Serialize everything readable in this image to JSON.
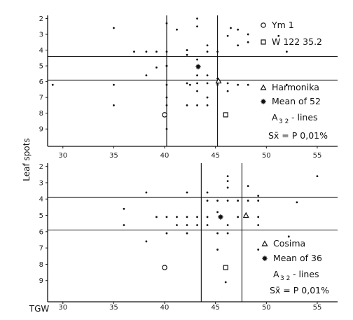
{
  "chart_data": [
    {
      "type": "scatter",
      "xlabel": "",
      "ylabel": "Leaf spots",
      "x_ticks": [
        "30",
        "35",
        "40",
        "45",
        "50",
        "55"
      ],
      "y_ticks": [
        "2",
        "3",
        "4",
        "5",
        "6",
        "7",
        "8",
        "9"
      ],
      "xlim": [
        28.5,
        57
      ],
      "ylim": [
        1.8,
        10.1
      ],
      "grid": false,
      "legend": {
        "position": "right",
        "entries": [
          {
            "marker": "open-circle",
            "label": "Ym 1"
          },
          {
            "marker": "open-square",
            "label": "W 122 35.2"
          },
          {
            "marker": "triangle",
            "label": "Harmonika"
          },
          {
            "marker": "star",
            "label": "Mean of 52"
          },
          {
            "marker": "none",
            "label": "A3 2 - lines",
            "main": "A",
            "sub": "3 2",
            "suffix": "- lines"
          },
          {
            "marker": "none",
            "label": "Sx̄ = P 0,01%"
          }
        ]
      },
      "reference_lines": {
        "x": [
          40.2,
          45.2
        ],
        "y": [
          4.4,
          5.9
        ]
      },
      "series": [
        {
          "marker": "dot",
          "x": [
            43.2,
            35,
            37,
            38.2,
            39.2,
            40.2,
            40.2,
            42.2,
            44.2,
            45.2,
            46.2,
            47.2,
            48.2,
            48.2,
            52,
            29,
            35,
            42.2,
            42.5,
            43.2,
            43.2,
            44.2,
            44.2,
            45.2,
            45.2,
            46.2,
            46.2,
            47.2,
            48.2,
            52,
            38.2,
            39.2,
            40.2,
            40.2,
            43.2,
            44.2,
            45.2,
            35,
            40.2,
            40.2,
            42.2,
            43.2,
            44.2,
            40.2,
            41.2,
            46.5,
            47.2,
            51.2,
            42.2,
            43.2,
            40.2,
            43.2,
            44.2
          ],
          "y": [
            2,
            2.6,
            4.1,
            4.1,
            4.1,
            4.1,
            5,
            4,
            4.1,
            4.1,
            3.1,
            3.7,
            3,
            3.5,
            4.1,
            6.2,
            6.2,
            6.1,
            6.2,
            6.1,
            6.6,
            6.1,
            7,
            6.1,
            6.2,
            6.1,
            6.6,
            6.2,
            6.2,
            6.2,
            5.6,
            5.1,
            5,
            6.2,
            5.6,
            5.6,
            5.8,
            7.5,
            7,
            7.5,
            7.5,
            7.5,
            7.5,
            9,
            2.7,
            2.6,
            2.7,
            3.1,
            4.3,
            4.6,
            2.3,
            2.5,
            3.7
          ]
        },
        {
          "marker": "open-circle",
          "name": "Ym 1",
          "x": [
            40
          ],
          "y": [
            8.1
          ]
        },
        {
          "marker": "open-square",
          "name": "W 122 35.2",
          "x": [
            46
          ],
          "y": [
            8.1
          ]
        },
        {
          "marker": "triangle",
          "name": "Harmonika",
          "x": [
            45.3
          ],
          "y": [
            5.95
          ]
        },
        {
          "marker": "star",
          "name": "Mean of 52",
          "x": [
            43.3
          ],
          "y": [
            5.05
          ]
        }
      ]
    },
    {
      "type": "scatter",
      "xlabel": "TGW",
      "ylabel": "",
      "x_ticks": [
        "30",
        "35",
        "40",
        "45",
        "50",
        "55"
      ],
      "y_ticks": [
        "2",
        "3",
        "4",
        "5",
        "6",
        "7",
        "8",
        "9"
      ],
      "xlim": [
        28.5,
        57
      ],
      "ylim": [
        1.8,
        10.3
      ],
      "grid": false,
      "legend": {
        "position": "right",
        "entries": [
          {
            "marker": "triangle",
            "label": "Cosima"
          },
          {
            "marker": "star",
            "label": "Mean of 36"
          },
          {
            "marker": "none",
            "label": "A3 2 - lines",
            "main": "A",
            "sub": "3 2",
            "suffix": "- lines"
          },
          {
            "marker": "none",
            "label": "Sx̄ = P 0,01%"
          }
        ]
      },
      "reference_lines": {
        "x": [
          43.6,
          47.6
        ],
        "y": [
          3.9,
          5.9
        ]
      },
      "series": [
        {
          "marker": "dot",
          "x": [
            46.2,
            46.2,
            46.2,
            48.2,
            49.2,
            55,
            38.2,
            42.2,
            44.2,
            44.2,
            45.2,
            46.2,
            47.2,
            48.2,
            49.2,
            53,
            36,
            39.2,
            40.2,
            41.2,
            42.2,
            43.2,
            36,
            41.2,
            42.2,
            42.2,
            43.2,
            44.2,
            46.2,
            49.2,
            40.2,
            45.2,
            46.2,
            47.2,
            49.2,
            52.2,
            38.2,
            45.2,
            49.2,
            46,
            45.2,
            44.2
          ],
          "y": [
            2.9,
            3.3,
            2.6,
            3.2,
            3.8,
            2.6,
            3.6,
            3.6,
            3.6,
            4.1,
            4.1,
            4.1,
            4.1,
            4.1,
            4.1,
            4.2,
            4.6,
            5.1,
            5.1,
            5.1,
            5.1,
            5.1,
            5.6,
            5.6,
            5.6,
            6.1,
            5.6,
            5.6,
            5.6,
            5.6,
            6.1,
            6.1,
            6.1,
            5.1,
            5.1,
            6.3,
            6.6,
            7.1,
            7.1,
            9.1,
            4.8,
            5.1
          ]
        },
        {
          "marker": "open-circle",
          "x": [
            40
          ],
          "y": [
            8.2
          ]
        },
        {
          "marker": "open-square",
          "x": [
            46
          ],
          "y": [
            8.2
          ]
        },
        {
          "marker": "triangle",
          "name": "Cosima",
          "x": [
            48
          ],
          "y": [
            5
          ]
        },
        {
          "marker": "star",
          "name": "Mean of 36",
          "x": [
            45.5
          ],
          "y": [
            5.1
          ]
        }
      ]
    }
  ]
}
